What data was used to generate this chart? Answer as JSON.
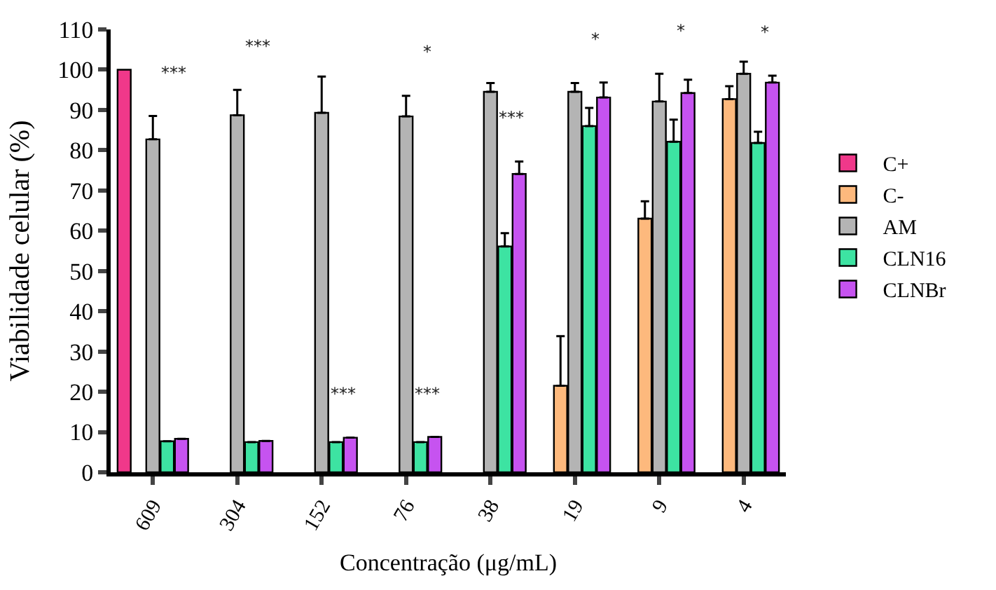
{
  "chart_data": {
    "type": "bar",
    "xlabel": "Concentração (μg/mL)",
    "ylabel": "Viabilidade celular (%)",
    "categories": [
      "609",
      "304",
      "152",
      "76",
      "38",
      "19",
      "9",
      "4"
    ],
    "ylim": [
      0,
      110
    ],
    "yticks": [
      0,
      10,
      20,
      30,
      40,
      50,
      60,
      70,
      80,
      90,
      100,
      110
    ],
    "legend": "right",
    "series": [
      {
        "name": "C+",
        "color": "#f0388a",
        "values": [
          100,
          null,
          null,
          null,
          null,
          null,
          null,
          null
        ]
      },
      {
        "name": "C-",
        "color": "#fdb97d",
        "values": [
          null,
          null,
          null,
          null,
          null,
          21.5,
          63,
          92.7
        ],
        "errors": [
          null,
          null,
          null,
          null,
          null,
          [
            21.5,
            33.8
          ],
          [
            63,
            67.3
          ],
          [
            92.7,
            95.9
          ]
        ]
      },
      {
        "name": "AM",
        "color": "#b4b4b4",
        "values": [
          82.7,
          88.7,
          89.3,
          88.4,
          94.5,
          94.5,
          92.1,
          99
        ],
        "errors": [
          [
            82.7,
            88.5
          ],
          [
            88.7,
            95
          ],
          [
            89.3,
            98.3
          ],
          [
            88.4,
            93.5
          ],
          [
            94.5,
            96.7
          ],
          [
            94.5,
            96.7
          ],
          [
            92.1,
            99
          ],
          [
            99,
            102
          ]
        ]
      },
      {
        "name": "CLN16",
        "color": "#3de3a2",
        "values": [
          7.7,
          7.5,
          7.5,
          7.5,
          56.1,
          86,
          82.1,
          81.8
        ],
        "errors": [
          null,
          null,
          null,
          null,
          [
            56.1,
            59.4
          ],
          [
            86,
            90.5
          ],
          [
            82.1,
            87.6
          ],
          [
            81.8,
            84.6
          ]
        ]
      },
      {
        "name": "CLNBr",
        "color": "#c653f0",
        "values": [
          8.3,
          7.8,
          8.6,
          8.8,
          74.1,
          93.1,
          94.2,
          96.8
        ],
        "errors": [
          null,
          null,
          null,
          null,
          [
            74.1,
            77.2
          ],
          [
            93.1,
            96.8
          ],
          [
            94.2,
            97.5
          ],
          [
            96.8,
            98.5
          ]
        ]
      }
    ],
    "annotations": [
      {
        "text": "***",
        "x": "609",
        "y": 88.5
      },
      {
        "text": "***",
        "x": "304",
        "y": 95
      },
      {
        "text": "***",
        "x": "152",
        "y": 8.6
      },
      {
        "text": "*",
        "x": "76",
        "y": 93.5
      },
      {
        "text": "***",
        "x": "76",
        "y": 8.8
      },
      {
        "text": "***",
        "x": "38",
        "y": 77.2
      },
      {
        "text": "*",
        "x": "19",
        "y": 96.8
      },
      {
        "text": "*",
        "x": "9",
        "y": 99
      },
      {
        "text": "*",
        "x": "4",
        "y": 98.5
      }
    ]
  }
}
